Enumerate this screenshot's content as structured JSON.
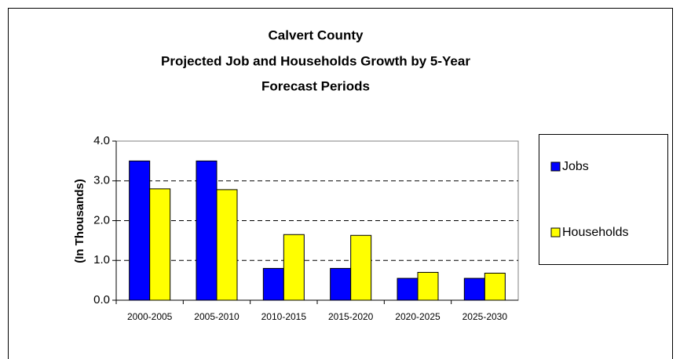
{
  "chart_data": {
    "type": "bar",
    "title": [
      "Calvert County",
      "Projected Job and Households Growth by 5-Year",
      "Forecast Periods"
    ],
    "y_label": "(In Thousands)",
    "categories": [
      "2000-2005",
      "2005-2010",
      "2010-2015",
      "2015-2020",
      "2020-2025",
      "2025-2030"
    ],
    "series": [
      {
        "name": "Jobs",
        "color": "#0000ff",
        "values": [
          3.5,
          3.5,
          0.8,
          0.8,
          0.55,
          0.55
        ]
      },
      {
        "name": "Households",
        "color": "#ffff00",
        "values": [
          2.8,
          2.78,
          1.65,
          1.63,
          0.7,
          0.68
        ]
      }
    ],
    "ylim": [
      0,
      4
    ],
    "yticks": [
      {
        "value": 0,
        "label": "0.0"
      },
      {
        "value": 1,
        "label": "1.0"
      },
      {
        "value": 2,
        "label": "2.0"
      },
      {
        "value": 3,
        "label": "3.0"
      },
      {
        "value": 4,
        "label": "4.0"
      }
    ],
    "grid": true,
    "legend": "right"
  }
}
